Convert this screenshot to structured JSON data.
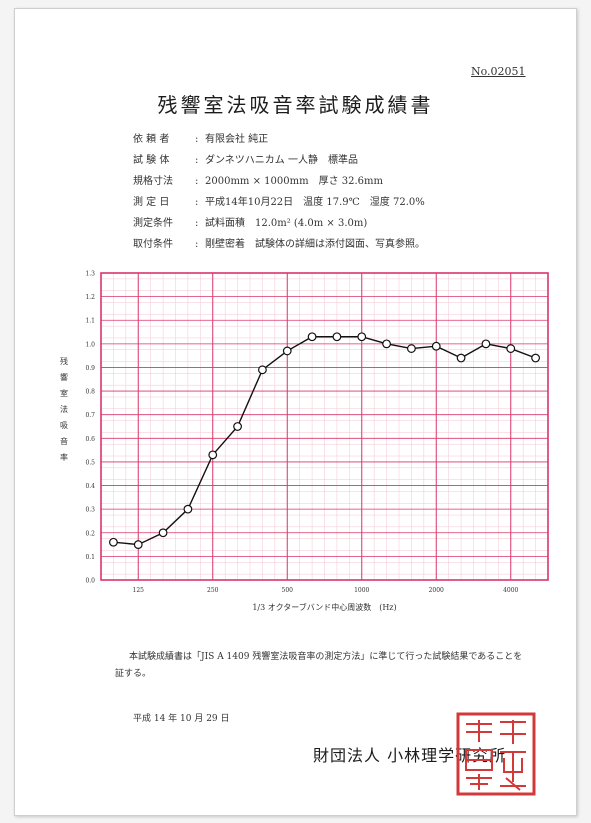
{
  "doc": {
    "number": "No.02051",
    "title": "残響室法吸音率試験成績書"
  },
  "info": [
    {
      "label": "依 頼 者",
      "value": "有限会社 純正"
    },
    {
      "label": "試 験 体",
      "value": "ダンネツハニカム 一人静　標準品"
    },
    {
      "label": "規格寸法",
      "value": "2000mm × 1000mm　厚さ 32.6mm"
    },
    {
      "label": "測 定 日",
      "value": "平成14年10月22日　温度 17.9℃　湿度 72.0%"
    },
    {
      "label": "測定条件",
      "value": "試料面積　12.0m² (4.0m × 3.0m)"
    },
    {
      "label": "取付条件",
      "value": "剛壁密着　試験体の詳細は添付図面、写真参照。"
    }
  ],
  "info_separator": ":",
  "chart_data": {
    "type": "line",
    "ylabel": "残響室法吸音率",
    "xlabel": "1/3 オクターブバンド中心周波数　(Hz)",
    "ylim": [
      0.0,
      1.3
    ],
    "yticks": [
      "0.0",
      "0.1",
      "0.2",
      "0.3",
      "0.4",
      "0.5",
      "0.6",
      "0.7",
      "0.8",
      "0.9",
      "1.0",
      "1.1",
      "1.2",
      "1.3"
    ],
    "x_band_count": 18,
    "xtick_labels": [
      {
        "band": 1,
        "label": "125"
      },
      {
        "band": 4,
        "label": "250"
      },
      {
        "band": 7,
        "label": "500"
      },
      {
        "band": 10,
        "label": "1000"
      },
      {
        "band": 13,
        "label": "2000"
      },
      {
        "band": 16,
        "label": "4000"
      }
    ],
    "values": [
      0.16,
      0.15,
      0.2,
      0.3,
      0.53,
      0.65,
      0.89,
      0.97,
      1.03,
      1.03,
      1.03,
      1.0,
      0.98,
      0.99,
      0.94,
      1.0,
      0.98,
      0.94
    ],
    "grid": true,
    "colors": {
      "grid": "#d9356a",
      "line": "#111111",
      "marker_fill": "#ffffff"
    }
  },
  "note": "本試験成績書は「JIS A 1409 残響室法吸音率の測定方法」に準じて行った試験結果であることを証する。",
  "date": "平成 14 年 10 月 29 日",
  "issuer": "財団法人 小林理学研究所",
  "seal": {
    "color": "#d23a3a"
  }
}
